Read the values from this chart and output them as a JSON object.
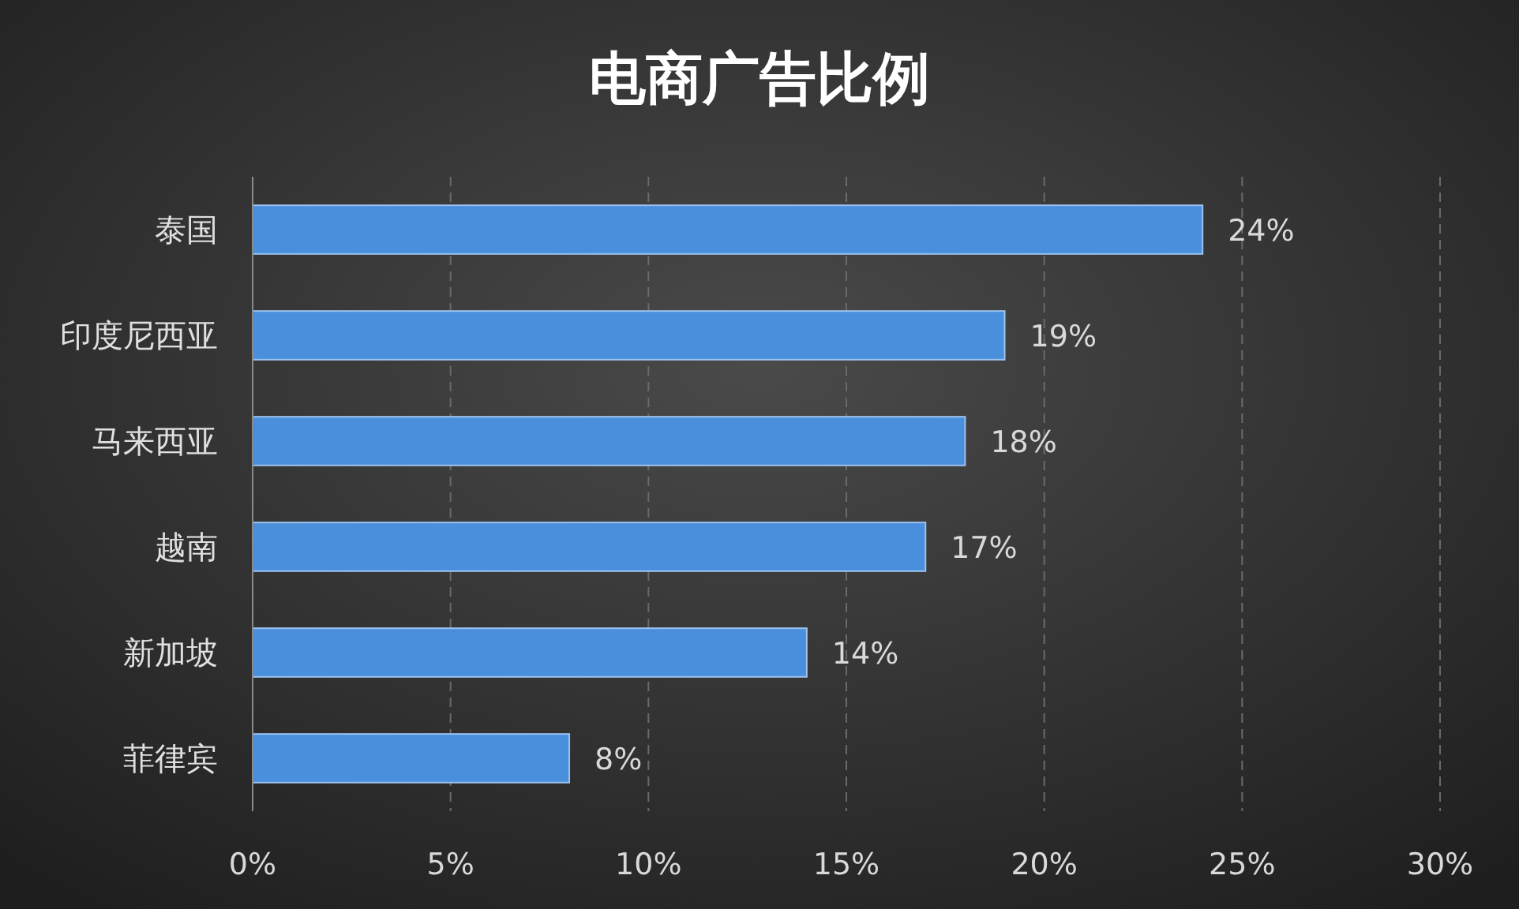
{
  "chart_data": {
    "type": "bar",
    "orientation": "horizontal",
    "title": "电商广告比例",
    "categories": [
      "泰国",
      "印度尼西亚",
      "马来西亚",
      "越南",
      "新加坡",
      "菲律宾"
    ],
    "values": [
      24,
      19,
      18,
      17,
      14,
      8
    ],
    "value_labels": [
      "24%",
      "19%",
      "18%",
      "17%",
      "14%",
      "8%"
    ],
    "color": "#4a8fdc",
    "xlim": [
      0,
      30
    ],
    "xticks": [
      {
        "value": 0,
        "label": "0%"
      },
      {
        "value": 5,
        "label": "5%"
      },
      {
        "value": 10,
        "label": "10%"
      },
      {
        "value": 15,
        "label": "15%"
      },
      {
        "value": 20,
        "label": "20%"
      },
      {
        "value": 25,
        "label": "25%"
      },
      {
        "value": 30,
        "label": "30%"
      }
    ],
    "grid": "x"
  }
}
